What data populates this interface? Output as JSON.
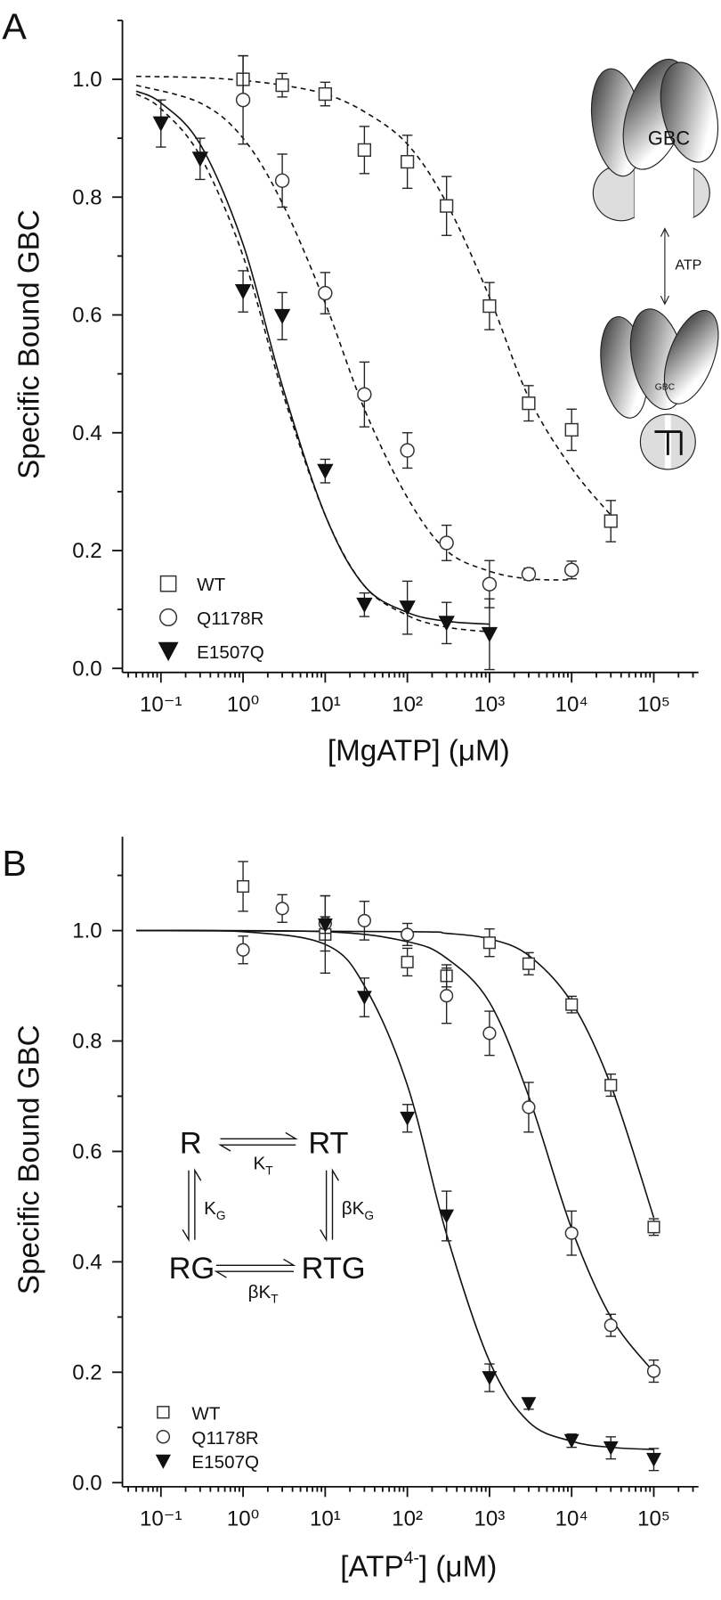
{
  "chart_data": [
    {
      "type": "scatter",
      "panel": "A",
      "ylabel": "Specific Bound GBC",
      "xlabel": "[MgATP] (μM)",
      "xlog": true,
      "xlim": [
        0.034,
        350000
      ],
      "xticks": [
        {
          "value": 0.1,
          "label": "10⁻¹"
        },
        {
          "value": 1,
          "label": "10⁰"
        },
        {
          "value": 10,
          "label": "10¹"
        },
        {
          "value": 100,
          "label": "10²"
        },
        {
          "value": 1000,
          "label": "10³"
        },
        {
          "value": 10000,
          "label": "10⁴"
        },
        {
          "value": 100000,
          "label": "10⁵"
        }
      ],
      "ylim": [
        0,
        1.1
      ],
      "yticks": [
        {
          "value": 0,
          "label": "0.0"
        },
        0.2,
        0.4,
        0.6,
        0.8,
        {
          "value": 1,
          "label": "1.0"
        }
      ],
      "legend": "lower left",
      "series": [
        {
          "name": "WT",
          "marker": "square",
          "color": "#333333",
          "x": [
            1,
            3,
            10,
            30,
            100,
            300,
            1000,
            3000,
            10000,
            30000
          ],
          "values": [
            1.0,
            0.99,
            0.975,
            0.88,
            0.86,
            0.785,
            0.615,
            0.45,
            0.405,
            0.25
          ],
          "errors": [
            0.04,
            0.02,
            0.02,
            0.04,
            0.045,
            0.05,
            0.04,
            0.03,
            0.035,
            0.035
          ]
        },
        {
          "name": "Q1178R",
          "marker": "circle",
          "color": "#333333",
          "x": [
            1,
            3,
            10,
            30,
            100,
            300,
            1000,
            3000,
            10000
          ],
          "values": [
            0.965,
            0.828,
            0.637,
            0.465,
            0.37,
            0.213,
            0.143,
            0.16,
            0.167
          ],
          "errors": [
            0.075,
            0.045,
            0.035,
            0.055,
            0.03,
            0.03,
            0.04,
            0.01,
            0.015
          ]
        },
        {
          "name": "E1507Q",
          "marker": "triangle",
          "color": "#111111",
          "x": [
            0.1,
            0.3,
            1,
            3,
            10,
            30,
            100,
            300,
            1000
          ],
          "values": [
            0.925,
            0.865,
            0.64,
            0.598,
            0.335,
            0.108,
            0.103,
            0.077,
            0.058
          ],
          "errors": [
            0.04,
            0.035,
            0.035,
            0.04,
            0.02,
            0.02,
            0.045,
            0.035,
            0.06
          ]
        }
      ],
      "fits": [
        {
          "dashed": true,
          "color": "#111111",
          "x": [
            0.05,
            0.3,
            1,
            3,
            10,
            30,
            100,
            300,
            1000,
            3000,
            10000,
            30000
          ],
          "values": [
            1.005,
            1.003,
            0.998,
            0.99,
            0.975,
            0.945,
            0.89,
            0.79,
            0.63,
            0.46,
            0.34,
            0.26
          ]
        },
        {
          "dashed": true,
          "color": "#111111",
          "x": [
            0.05,
            0.3,
            1,
            3,
            10,
            30,
            100,
            300,
            1000,
            3000,
            10000
          ],
          "values": [
            0.99,
            0.96,
            0.9,
            0.79,
            0.62,
            0.44,
            0.29,
            0.2,
            0.165,
            0.152,
            0.15
          ]
        },
        {
          "dashed": true,
          "color": "#111111",
          "x": [
            0.05,
            0.1,
            0.3,
            1,
            3,
            10,
            30,
            100,
            300,
            1000
          ],
          "values": [
            0.975,
            0.95,
            0.87,
            0.7,
            0.47,
            0.26,
            0.14,
            0.09,
            0.07,
            0.062
          ]
        },
        {
          "dashed": false,
          "color": "#111111",
          "x": [
            0.05,
            0.1,
            0.3,
            1,
            3,
            10,
            30,
            100,
            300,
            1000
          ],
          "values": [
            0.98,
            0.96,
            0.89,
            0.72,
            0.48,
            0.26,
            0.14,
            0.095,
            0.08,
            0.075
          ]
        }
      ],
      "annotations": [
        "GBC",
        "ATP",
        "GBC"
      ]
    },
    {
      "type": "scatter",
      "panel": "B",
      "ylabel": "Specific Bound GBC",
      "xlabel_parts": [
        "[ATP",
        "4-",
        "] (μM)"
      ],
      "xlog": true,
      "xlim": [
        0.034,
        350000
      ],
      "xticks": [
        {
          "value": 0.1,
          "label": "10⁻¹"
        },
        {
          "value": 1,
          "label": "10⁰"
        },
        {
          "value": 10,
          "label": "10¹"
        },
        {
          "value": 100,
          "label": "10²"
        },
        {
          "value": 1000,
          "label": "10³"
        },
        {
          "value": 10000,
          "label": "10⁴"
        },
        {
          "value": 100000,
          "label": "10⁵"
        }
      ],
      "ylim": [
        0,
        1.17
      ],
      "yticks": [
        {
          "value": 0,
          "label": "0.0"
        },
        0.2,
        0.4,
        0.6,
        0.8,
        {
          "value": 1,
          "label": "1.0"
        }
      ],
      "legend": "lower left",
      "series": [
        {
          "name": "WT",
          "marker": "square",
          "color": "#333333",
          "x": [
            1,
            10,
            100,
            300,
            1000,
            3000,
            10000,
            30000,
            100000
          ],
          "values": [
            1.08,
            0.993,
            0.943,
            0.918,
            0.978,
            0.94,
            0.866,
            0.72,
            0.463
          ],
          "errors": [
            0.045,
            0.07,
            0.025,
            0.02,
            0.025,
            0.02,
            0.015,
            0.02,
            0.015
          ]
        },
        {
          "name": "Q1178R",
          "marker": "circle",
          "color": "#333333",
          "x": [
            1,
            3,
            10,
            30,
            100,
            300,
            1000,
            3000,
            10000,
            30000,
            100000
          ],
          "values": [
            0.965,
            1.04,
            1.013,
            1.018,
            0.993,
            0.882,
            0.814,
            0.68,
            0.452,
            0.285,
            0.202
          ],
          "errors": [
            0.025,
            0.025,
            0.05,
            0.035,
            0.02,
            0.05,
            0.04,
            0.045,
            0.04,
            0.02,
            0.02
          ]
        },
        {
          "name": "E1507Q",
          "marker": "triangle",
          "color": "#111111",
          "x": [
            10,
            30,
            100,
            300,
            1000,
            3000,
            10000,
            30000,
            100000
          ],
          "values": [
            1.01,
            0.879,
            0.66,
            0.483,
            0.19,
            0.143,
            0.076,
            0.063,
            0.042
          ],
          "errors": [
            0.015,
            0.035,
            0.025,
            0.045,
            0.025,
            0.01,
            0.012,
            0.02,
            0.02
          ]
        }
      ],
      "fits": [
        {
          "dashed": false,
          "color": "#111111",
          "x": [
            0.05,
            100,
            300,
            1000,
            3000,
            10000,
            30000,
            100000
          ],
          "values": [
            1.0,
            0.998,
            0.995,
            0.985,
            0.955,
            0.87,
            0.72,
            0.48
          ]
        },
        {
          "dashed": false,
          "color": "#111111",
          "x": [
            0.05,
            10,
            100,
            300,
            1000,
            3000,
            10000,
            30000,
            100000
          ],
          "values": [
            1.0,
            0.998,
            0.98,
            0.95,
            0.87,
            0.7,
            0.46,
            0.3,
            0.2
          ]
        },
        {
          "dashed": false,
          "color": "#111111",
          "x": [
            0.05,
            1,
            10,
            30,
            100,
            300,
            1000,
            3000,
            10000,
            30000,
            100000
          ],
          "values": [
            1.0,
            0.998,
            0.975,
            0.9,
            0.72,
            0.45,
            0.22,
            0.11,
            0.075,
            0.064,
            0.06
          ]
        }
      ],
      "scheme": [
        {
          "text": "R"
        },
        {
          "text": "RT"
        },
        {
          "text": "RG"
        },
        {
          "text": "RTG"
        },
        {
          "text": "K",
          "sub": "T"
        },
        {
          "text": "K",
          "sub": "G"
        },
        {
          "text": "βK",
          "sub": "G"
        },
        {
          "text": "βK",
          "sub": "T"
        }
      ]
    }
  ]
}
